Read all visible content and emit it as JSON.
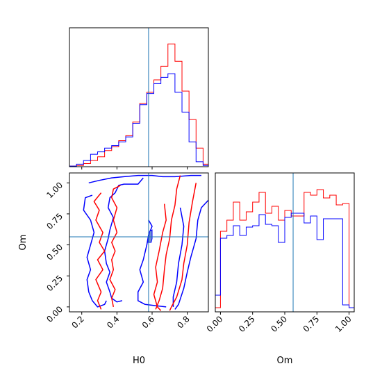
{
  "chart_data": {
    "type": "corner",
    "variables": [
      "H0",
      "Om"
    ],
    "truth": {
      "H0": 0.58,
      "Om": 0.565
    },
    "colors": {
      "red": "#ff0000",
      "blue": "#0000ff",
      "truth": "#1f77b4"
    },
    "panels": [
      {
        "id": "h0-marginal",
        "type": "histogram",
        "variable": "H0",
        "xlim": [
          0.13,
          0.92
        ],
        "ylim": [
          0,
          1.12
        ],
        "bin_edges": [
          0.13,
          0.17,
          0.21,
          0.25,
          0.29,
          0.33,
          0.37,
          0.41,
          0.45,
          0.49,
          0.53,
          0.57,
          0.61,
          0.65,
          0.69,
          0.73,
          0.77,
          0.81,
          0.85,
          0.89,
          0.92
        ],
        "series": [
          {
            "color": "red",
            "values": [
              0.005,
              0.01,
              0.025,
              0.05,
              0.08,
              0.13,
              0.16,
              0.21,
              0.25,
              0.36,
              0.51,
              0.6,
              0.7,
              0.81,
              0.99,
              0.85,
              0.61,
              0.38,
              0.15,
              0.02
            ]
          },
          {
            "color": "blue",
            "values": [
              0.005,
              0.02,
              0.05,
              0.1,
              0.12,
              0.15,
              0.17,
              0.2,
              0.24,
              0.35,
              0.5,
              0.59,
              0.67,
              0.72,
              0.75,
              0.6,
              0.44,
              0.2,
              0.04,
              0.01
            ]
          }
        ]
      },
      {
        "id": "om-marginal",
        "type": "histogram",
        "variable": "Om",
        "xlim": [
          -0.04,
          1.04
        ],
        "ylim": [
          0,
          1.0
        ],
        "bin_edges": [
          -0.04,
          0.0,
          0.05,
          0.1,
          0.15,
          0.2,
          0.25,
          0.3,
          0.35,
          0.4,
          0.45,
          0.5,
          0.55,
          0.6,
          0.65,
          0.7,
          0.75,
          0.8,
          0.85,
          0.9,
          0.95,
          1.0,
          1.04
        ],
        "series": [
          {
            "color": "red",
            "values": [
              0.03,
              0.58,
              0.66,
              0.79,
              0.66,
              0.72,
              0.79,
              0.86,
              0.71,
              0.76,
              0.66,
              0.73,
              0.69,
              0.69,
              0.86,
              0.84,
              0.88,
              0.82,
              0.84,
              0.77,
              0.78,
              0.03
            ]
          },
          {
            "color": "blue",
            "values": [
              0.12,
              0.53,
              0.55,
              0.62,
              0.55,
              0.61,
              0.62,
              0.7,
              0.63,
              0.62,
              0.5,
              0.68,
              0.71,
              0.71,
              0.64,
              0.69,
              0.52,
              0.67,
              0.67,
              0.67,
              0.05,
              0.03
            ]
          }
        ]
      },
      {
        "id": "joint",
        "type": "contour",
        "x": "H0",
        "y": "Om",
        "xlim": [
          0.13,
          0.92
        ],
        "ylim": [
          -0.04,
          1.08
        ],
        "xticks": [
          0.2,
          0.4,
          0.6,
          0.8
        ],
        "yticks": [
          0.0,
          0.25,
          0.5,
          0.75,
          1.0
        ],
        "contours": [
          {
            "color": "blue",
            "points": [
              [
                0.55,
                1.04
              ],
              [
                0.52,
                0.99
              ],
              [
                0.44,
                0.99
              ],
              [
                0.41,
                0.98
              ],
              [
                0.39,
                0.92
              ],
              [
                0.36,
                0.88
              ],
              [
                0.35,
                0.8
              ],
              [
                0.38,
                0.72
              ],
              [
                0.36,
                0.62
              ],
              [
                0.35,
                0.55
              ],
              [
                0.33,
                0.45
              ],
              [
                0.34,
                0.35
              ],
              [
                0.36,
                0.28
              ],
              [
                0.34,
                0.2
              ],
              [
                0.36,
                0.12
              ],
              [
                0.37,
                0.07
              ],
              [
                0.4,
                0.04
              ],
              [
                0.43,
                0.05
              ]
            ]
          },
          {
            "color": "blue",
            "points": [
              [
                0.26,
                0.9
              ],
              [
                0.22,
                0.88
              ],
              [
                0.21,
                0.78
              ],
              [
                0.25,
                0.7
              ],
              [
                0.27,
                0.6
              ],
              [
                0.25,
                0.5
              ],
              [
                0.23,
                0.4
              ],
              [
                0.25,
                0.3
              ],
              [
                0.23,
                0.22
              ],
              [
                0.24,
                0.12
              ],
              [
                0.26,
                0.05
              ],
              [
                0.29,
                0.0
              ],
              [
                0.33,
                0.02
              ],
              [
                0.34,
                0.05
              ]
            ]
          },
          {
            "color": "blue",
            "points": [
              [
                0.24,
                1.0
              ],
              [
                0.3,
                1.02
              ],
              [
                0.37,
                1.04
              ],
              [
                0.44,
                1.05
              ],
              [
                0.52,
                1.06
              ],
              [
                0.6,
                1.06
              ],
              [
                0.66,
                1.05
              ],
              [
                0.73,
                1.05
              ],
              [
                0.82,
                1.06
              ],
              [
                0.88,
                1.06
              ]
            ]
          },
          {
            "color": "blue",
            "points": [
              [
                0.58,
                0.7
              ],
              [
                0.6,
                0.65
              ],
              [
                0.58,
                0.58
              ],
              [
                0.57,
                0.5
              ],
              [
                0.55,
                0.38
              ],
              [
                0.53,
                0.3
              ],
              [
                0.55,
                0.2
              ],
              [
                0.52,
                0.12
              ],
              [
                0.52,
                0.05
              ],
              [
                0.56,
                0.02
              ],
              [
                0.62,
                0.01
              ],
              [
                0.68,
                0.0
              ]
            ]
          },
          {
            "color": "blue",
            "points": [
              [
                0.76,
                0.8
              ],
              [
                0.78,
                0.65
              ],
              [
                0.77,
                0.5
              ],
              [
                0.75,
                0.35
              ],
              [
                0.74,
                0.2
              ],
              [
                0.72,
                0.08
              ],
              [
                0.72,
                0.0
              ]
            ]
          },
          {
            "color": "blue",
            "points": [
              [
                0.92,
                0.86
              ],
              [
                0.88,
                0.8
              ],
              [
                0.86,
                0.7
              ],
              [
                0.85,
                0.55
              ],
              [
                0.82,
                0.4
              ],
              [
                0.8,
                0.28
              ],
              [
                0.78,
                0.15
              ],
              [
                0.75,
                0.02
              ],
              [
                0.73,
                -0.02
              ]
            ]
          },
          {
            "color": "red",
            "points": [
              [
                0.42,
                0.98
              ],
              [
                0.38,
                0.95
              ],
              [
                0.37,
                0.88
              ],
              [
                0.4,
                0.8
              ],
              [
                0.38,
                0.7
              ],
              [
                0.4,
                0.6
              ],
              [
                0.37,
                0.52
              ],
              [
                0.39,
                0.45
              ],
              [
                0.37,
                0.38
              ],
              [
                0.38,
                0.3
              ],
              [
                0.36,
                0.22
              ],
              [
                0.39,
                0.14
              ],
              [
                0.37,
                0.07
              ],
              [
                0.38,
                0.0
              ]
            ]
          },
          {
            "color": "red",
            "points": [
              [
                0.31,
                0.92
              ],
              [
                0.27,
                0.85
              ],
              [
                0.3,
                0.78
              ],
              [
                0.28,
                0.7
              ],
              [
                0.32,
                0.6
              ],
              [
                0.3,
                0.52
              ],
              [
                0.33,
                0.45
              ],
              [
                0.29,
                0.38
              ],
              [
                0.32,
                0.3
              ],
              [
                0.28,
                0.22
              ],
              [
                0.31,
                0.12
              ],
              [
                0.29,
                0.05
              ],
              [
                0.31,
                -0.02
              ]
            ]
          },
          {
            "color": "red",
            "points": [
              [
                0.67,
                0.83
              ],
              [
                0.68,
                0.7
              ],
              [
                0.66,
                0.6
              ],
              [
                0.64,
                0.45
              ],
              [
                0.62,
                0.32
              ],
              [
                0.63,
                0.2
              ],
              [
                0.61,
                0.1
              ],
              [
                0.63,
                0.0
              ],
              [
                0.65,
                -0.03
              ]
            ]
          },
          {
            "color": "red",
            "points": [
              [
                0.85,
                1.0
              ],
              [
                0.83,
                0.85
              ],
              [
                0.81,
                0.68
              ],
              [
                0.8,
                0.5
              ],
              [
                0.78,
                0.35
              ],
              [
                0.77,
                0.22
              ],
              [
                0.74,
                0.08
              ],
              [
                0.71,
                0.0
              ],
              [
                0.7,
                -0.03
              ]
            ]
          },
          {
            "color": "red",
            "points": [
              [
                0.76,
                1.06
              ],
              [
                0.74,
                0.95
              ],
              [
                0.73,
                0.82
              ],
              [
                0.71,
                0.7
              ],
              [
                0.7,
                0.55
              ],
              [
                0.68,
                0.42
              ],
              [
                0.67,
                0.3
              ],
              [
                0.66,
                0.15
              ],
              [
                0.64,
                0.05
              ],
              [
                0.62,
                -0.02
              ]
            ]
          }
        ],
        "fill": {
          "color": "blue",
          "points": [
            [
              0.575,
              0.52
            ],
            [
              0.58,
              0.55
            ],
            [
              0.586,
              0.61
            ],
            [
              0.6,
              0.62
            ],
            [
              0.6,
              0.55
            ],
            [
              0.595,
              0.52
            ]
          ]
        }
      }
    ]
  }
}
